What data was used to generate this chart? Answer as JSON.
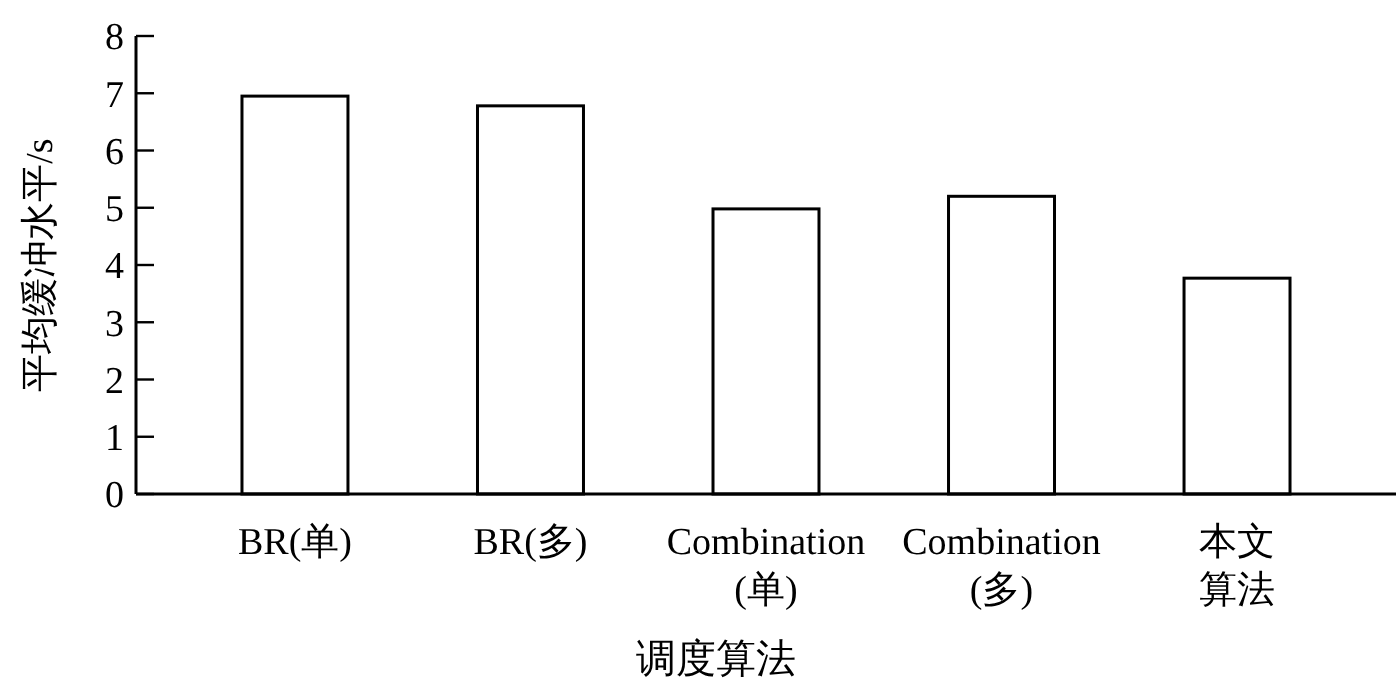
{
  "chart_data": {
    "type": "bar",
    "xlabel": "调度算法",
    "ylabel": "平均缓冲水平/s",
    "categories": [
      "BR(单)",
      "BR(多)",
      "Combination (单)",
      "Combination (多)",
      "本文算法"
    ],
    "values": [
      6.95,
      6.78,
      4.98,
      5.2,
      3.77
    ],
    "color": "#ffffff",
    "ylim": [
      0,
      8
    ],
    "yticks": [
      0,
      1,
      2,
      3,
      4,
      5,
      6,
      7,
      8
    ],
    "grid": false
  }
}
